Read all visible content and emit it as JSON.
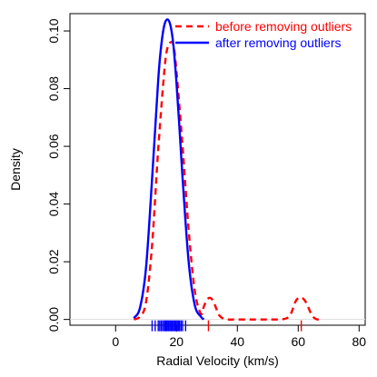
{
  "chart_data": {
    "type": "line",
    "title": "",
    "xlabel": "Radial Velocity (km/s)",
    "ylabel": "Density",
    "xlim": [
      -15,
      82
    ],
    "ylim": [
      -0.002,
      0.106
    ],
    "grid": false,
    "legend_position": "top-right",
    "xticks": [
      0,
      20,
      40,
      60,
      80
    ],
    "xtick_labels": [
      "0",
      "20",
      "40",
      "60",
      "80"
    ],
    "yticks": [
      0.0,
      0.02,
      0.04,
      0.06,
      0.08,
      0.1
    ],
    "ytick_labels": [
      "0.00",
      "0.02",
      "0.04",
      "0.06",
      "0.08",
      "0.10"
    ],
    "series": [
      {
        "name": "before removing outliers",
        "color": "#ff0000",
        "style": "dashed",
        "x": [
          6,
          8,
          10,
          12,
          14,
          16,
          17,
          18,
          19,
          20,
          22,
          24,
          26,
          28,
          29,
          30,
          31,
          32,
          33,
          34,
          36,
          40,
          45,
          50,
          55,
          57,
          58,
          59,
          60,
          61,
          62,
          63,
          64,
          65,
          66,
          67
        ],
        "y": [
          0.0,
          0.001,
          0.006,
          0.026,
          0.059,
          0.086,
          0.094,
          0.096,
          0.095,
          0.086,
          0.06,
          0.031,
          0.01,
          0.002,
          0.0045,
          0.0068,
          0.0075,
          0.0065,
          0.004,
          0.0015,
          0.0001,
          0.0,
          0.0,
          0.0,
          0.0001,
          0.001,
          0.003,
          0.006,
          0.0074,
          0.0076,
          0.0068,
          0.005,
          0.0025,
          0.0008,
          0.0001,
          0.0
        ]
      },
      {
        "name": "after removing outliers",
        "color": "#0000ff",
        "style": "solid",
        "x": [
          6,
          8,
          10,
          12,
          14,
          15,
          16,
          17,
          18,
          19,
          20,
          21,
          22,
          24,
          26,
          28,
          29
        ],
        "y": [
          0.0005,
          0.004,
          0.018,
          0.049,
          0.083,
          0.095,
          0.102,
          0.104,
          0.102,
          0.095,
          0.082,
          0.066,
          0.049,
          0.02,
          0.005,
          0.001,
          0.0
        ]
      }
    ],
    "rug": {
      "blue": [
        12,
        13,
        14,
        14.5,
        15,
        15.5,
        16,
        16.3,
        16.7,
        17,
        17.4,
        17.8,
        18.2,
        18.6,
        19,
        19.4,
        19.8,
        20.2,
        20.6,
        21,
        21.5,
        22,
        23
      ],
      "red": [
        30.5,
        61.0
      ]
    },
    "baseline_y": 0.0
  }
}
